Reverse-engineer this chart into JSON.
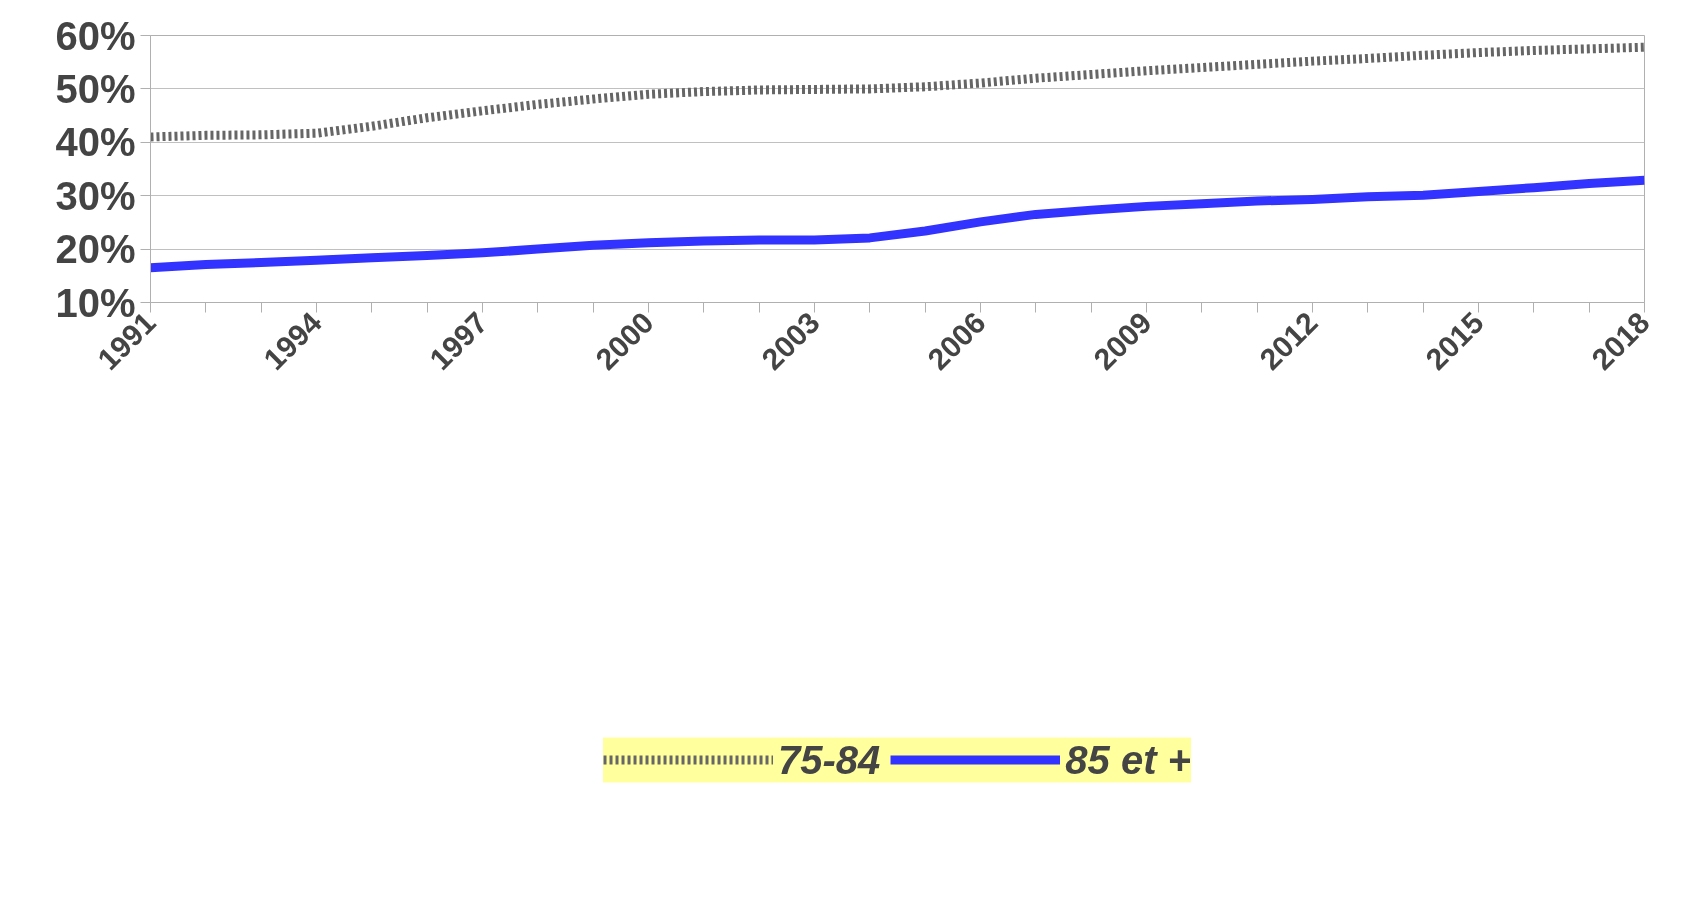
{
  "chart_data": {
    "type": "line",
    "x": [
      1991,
      1992,
      1993,
      1994,
      1995,
      1996,
      1997,
      1998,
      1999,
      2000,
      2001,
      2002,
      2003,
      2004,
      2005,
      2006,
      2007,
      2008,
      2009,
      2010,
      2011,
      2012,
      2013,
      2014,
      2015,
      2016,
      2017,
      2018
    ],
    "series": [
      {
        "name": "75-84",
        "color": "#666666",
        "line_style": "dotted",
        "values": [
          41.0,
          41.3,
          41.4,
          41.7,
          43.0,
          44.6,
          45.9,
          47.1,
          48.1,
          49.0,
          49.5,
          49.8,
          49.9,
          50.0,
          50.4,
          51.1,
          52.0,
          52.7,
          53.4,
          54.0,
          54.6,
          55.2,
          55.7,
          56.3,
          56.8,
          57.2,
          57.5,
          57.8
        ]
      },
      {
        "name": "85 et +",
        "color": "#3333ff",
        "line_style": "solid",
        "values": [
          16.5,
          17.1,
          17.5,
          17.9,
          18.4,
          18.8,
          19.3,
          20.0,
          20.7,
          21.2,
          21.5,
          21.7,
          21.7,
          22.1,
          23.4,
          25.1,
          26.5,
          27.3,
          28.0,
          28.5,
          29.0,
          29.3,
          29.8,
          30.1,
          30.8,
          31.5,
          32.3,
          32.9
        ]
      }
    ],
    "xlim": [
      1991,
      2018
    ],
    "xticks": [
      1991,
      {
        "value": 1992,
        "label": null
      },
      {
        "value": 1993,
        "label": null
      },
      1994,
      {
        "value": 1995,
        "label": null
      },
      {
        "value": 1996,
        "label": null
      },
      1997,
      {
        "value": 1998,
        "label": null
      },
      {
        "value": 1999,
        "label": null
      },
      2000,
      {
        "value": 2001,
        "label": null
      },
      {
        "value": 2002,
        "label": null
      },
      2003,
      {
        "value": 2004,
        "label": null
      },
      {
        "value": 2005,
        "label": null
      },
      2006,
      {
        "value": 2007,
        "label": null
      },
      {
        "value": 2008,
        "label": null
      },
      2009,
      {
        "value": 2010,
        "label": null
      },
      {
        "value": 2011,
        "label": null
      },
      2012,
      {
        "value": 2013,
        "label": null
      },
      {
        "value": 2014,
        "label": null
      },
      2015,
      {
        "value": 2016,
        "label": null
      },
      {
        "value": 2017,
        "label": null
      },
      2018
    ],
    "ylim": [
      10,
      60
    ],
    "yticks": [
      {
        "value": 10,
        "label": "10%"
      },
      {
        "value": 20,
        "label": "20%"
      },
      {
        "value": 30,
        "label": "30%"
      },
      {
        "value": 40,
        "label": "40%"
      },
      {
        "value": 50,
        "label": "50%"
      },
      {
        "value": 60,
        "label": "60%"
      }
    ],
    "grid": "y",
    "legend": "bottom",
    "marker": "none"
  }
}
